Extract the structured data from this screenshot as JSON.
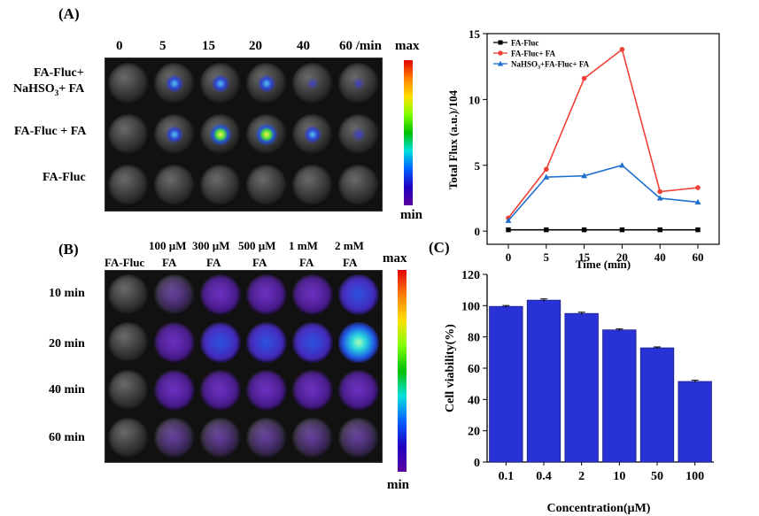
{
  "panelA": {
    "label": "(A)",
    "time_labels": [
      "0",
      "5",
      "15",
      "20",
      "40",
      "60 /min"
    ],
    "row_labels": {
      "row1_line1": "FA-Fluc+",
      "row1_line2_pre": "NaHSO",
      "row1_line2_sub": "3",
      "row1_line2_post": "+ FA",
      "row2": "FA-Fluc + FA",
      "row3": "FA-Fluc"
    },
    "colorbar": {
      "max": "max",
      "min": "min"
    }
  },
  "panelB": {
    "label": "(B)",
    "col_headers": [
      {
        "line1": "",
        "line2": "FA-Fluc"
      },
      {
        "line1": "100 µM",
        "line2": "FA"
      },
      {
        "line1": "300 µM",
        "line2": "FA"
      },
      {
        "line1": "500 µM",
        "line2": "FA"
      },
      {
        "line1": "1 mM",
        "line2": "FA"
      },
      {
        "line1": "2 mM",
        "line2": "FA"
      }
    ],
    "row_labels": [
      "10 min",
      "20 min",
      "40 min",
      "60 min"
    ],
    "colorbar": {
      "max": "max",
      "min": "min"
    }
  },
  "panelC": {
    "label": "(C)"
  },
  "colors": {
    "black": "#000000",
    "red": "#ef4136",
    "blue": "#1f6fd1",
    "bar": "#2832d6"
  },
  "chart_data": [
    {
      "type": "line",
      "title": "",
      "xlabel": "Time (min)",
      "ylabel": "Total Flux (a.u.)/104",
      "categories": [
        "0",
        "5",
        "15",
        "20",
        "40",
        "60"
      ],
      "yticks": [
        "0",
        "5",
        "10",
        "15"
      ],
      "ylim": [
        -1,
        15
      ],
      "series": [
        {
          "name": "FA-Fluc",
          "legend_pre": "FA-Fluc",
          "legend_sub": "",
          "legend_post": "",
          "color": "#000000",
          "marker": "square",
          "values": [
            0.1,
            0.1,
            0.1,
            0.1,
            0.1,
            0.1
          ]
        },
        {
          "name": "FA-Fluc+ FA",
          "legend_pre": "FA-Fluc+ FA",
          "legend_sub": "",
          "legend_post": "",
          "color": "#ef4136",
          "marker": "circle",
          "values": [
            1.0,
            4.7,
            11.6,
            13.8,
            3.0,
            3.3
          ]
        },
        {
          "name": "NaHSO3+FA-Fluc+ FA",
          "legend_pre": "NaHSO",
          "legend_sub": "3",
          "legend_post": "+FA-Fluc+ FA",
          "color": "#1f6fd1",
          "marker": "triangle",
          "values": [
            0.8,
            4.1,
            4.2,
            5.0,
            2.5,
            2.2
          ]
        }
      ]
    },
    {
      "type": "bar",
      "title": "",
      "xlabel": "Concentration(µM)",
      "ylabel": "Cell viability(%)",
      "categories": [
        "0.1",
        "0.4",
        "2",
        "10",
        "50",
        "100"
      ],
      "values": [
        99.5,
        103.5,
        95,
        84.5,
        73,
        51.5
      ],
      "errors": [
        0.6,
        0.8,
        0.8,
        0.6,
        0.6,
        0.8
      ],
      "yticks": [
        "0",
        "20",
        "40",
        "60",
        "80",
        "100",
        "120"
      ],
      "ylim": [
        0,
        120
      ],
      "color": "#2832d6"
    }
  ]
}
